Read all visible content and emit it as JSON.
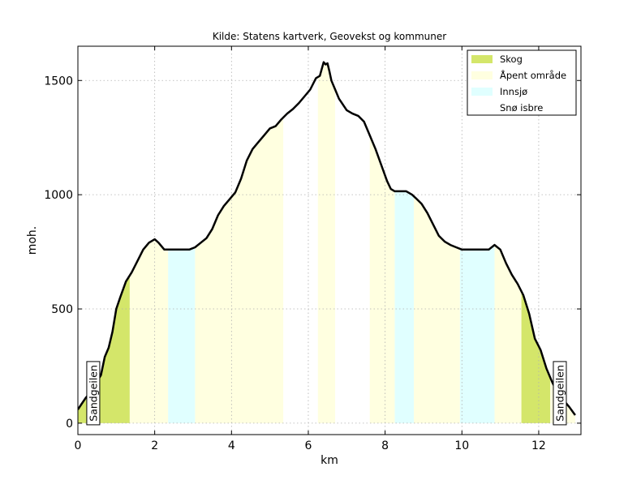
{
  "chart_data": {
    "type": "area",
    "title": "Kilde: Statens kartverk, Geovekst og kommuner",
    "xlabel": "km",
    "ylabel": "moh.",
    "xlim": [
      0,
      13.1
    ],
    "ylim": [
      -50,
      1650
    ],
    "xticks": [
      0,
      2,
      4,
      6,
      8,
      10,
      12
    ],
    "yticks": [
      0,
      500,
      1000,
      1500
    ],
    "grid": true,
    "legend_placement": "top-right",
    "colors": {
      "Skog": "#d4e66a",
      "Åpent område": "#ffffe0",
      "Innsjø": "#e0ffff",
      "Snø isbre": "#ffffff",
      "profile_line": "#000000"
    },
    "legend": [
      "Skog",
      "Åpent område",
      "Innsjø",
      "Snø isbre"
    ],
    "profile": {
      "x": [
        0,
        0.1,
        0.2,
        0.3,
        0.45,
        0.6,
        0.7,
        0.8,
        0.9,
        1.0,
        1.1,
        1.25,
        1.4,
        1.55,
        1.7,
        1.85,
        2.0,
        2.1,
        2.25,
        2.35,
        2.5,
        2.7,
        2.9,
        3.05,
        3.2,
        3.35,
        3.5,
        3.65,
        3.8,
        3.95,
        4.1,
        4.25,
        4.4,
        4.55,
        4.7,
        4.85,
        5.0,
        5.15,
        5.3,
        5.45,
        5.6,
        5.75,
        5.9,
        6.05,
        6.2,
        6.3,
        6.35,
        6.4,
        6.45,
        6.5,
        6.55,
        6.6,
        6.7,
        6.8,
        6.9,
        7.0,
        7.15,
        7.3,
        7.45,
        7.6,
        7.75,
        7.9,
        8.05,
        8.15,
        8.25,
        8.4,
        8.55,
        8.7,
        8.8,
        8.95,
        9.1,
        9.25,
        9.4,
        9.55,
        9.7,
        9.85,
        10.0,
        10.2,
        10.45,
        10.7,
        10.85,
        11.0,
        11.15,
        11.3,
        11.45,
        11.6,
        11.75,
        11.9,
        12.05,
        12.2,
        12.35,
        12.5,
        12.65,
        12.8,
        12.95
      ],
      "y": [
        60,
        85,
        110,
        130,
        170,
        210,
        290,
        330,
        400,
        500,
        550,
        620,
        660,
        710,
        760,
        790,
        805,
        790,
        760,
        760,
        760,
        760,
        760,
        770,
        790,
        810,
        850,
        910,
        950,
        980,
        1010,
        1070,
        1150,
        1200,
        1230,
        1260,
        1290,
        1300,
        1330,
        1355,
        1375,
        1400,
        1430,
        1460,
        1510,
        1520,
        1550,
        1580,
        1570,
        1575,
        1540,
        1500,
        1460,
        1420,
        1395,
        1370,
        1355,
        1345,
        1320,
        1260,
        1200,
        1130,
        1060,
        1025,
        1015,
        1015,
        1015,
        1000,
        985,
        960,
        920,
        870,
        820,
        795,
        780,
        770,
        760,
        760,
        760,
        760,
        780,
        760,
        700,
        650,
        610,
        560,
        480,
        370,
        320,
        240,
        180,
        130,
        100,
        70,
        35
      ]
    },
    "cover_segments": [
      {
        "type": "Skog",
        "x0": 0,
        "x1": 1.35
      },
      {
        "type": "Åpent område",
        "x0": 1.35,
        "x1": 2.35
      },
      {
        "type": "Innsjø",
        "x0": 2.35,
        "x1": 3.05
      },
      {
        "type": "Åpent område",
        "x0": 3.05,
        "x1": 5.35
      },
      {
        "type": "Snø isbre",
        "x0": 5.35,
        "x1": 6.25
      },
      {
        "type": "Åpent område",
        "x0": 6.25,
        "x1": 6.7
      },
      {
        "type": "Snø isbre",
        "x0": 6.7,
        "x1": 7.6
      },
      {
        "type": "Åpent område",
        "x0": 7.6,
        "x1": 8.25
      },
      {
        "type": "Innsjø",
        "x0": 8.25,
        "x1": 8.75
      },
      {
        "type": "Åpent område",
        "x0": 8.75,
        "x1": 9.95
      },
      {
        "type": "Innsjø",
        "x0": 9.95,
        "x1": 10.85
      },
      {
        "type": "Åpent område",
        "x0": 10.85,
        "x1": 11.55
      },
      {
        "type": "Skog",
        "x0": 11.55,
        "x1": 12.3
      },
      {
        "type": "Åpent område",
        "x0": 12.3,
        "x1": 12.95
      }
    ],
    "annotations": [
      {
        "text": "Sandgeilen",
        "x": 0.4,
        "y": 0
      },
      {
        "text": "Sandgeilen",
        "x": 12.55,
        "y": 0
      }
    ]
  }
}
